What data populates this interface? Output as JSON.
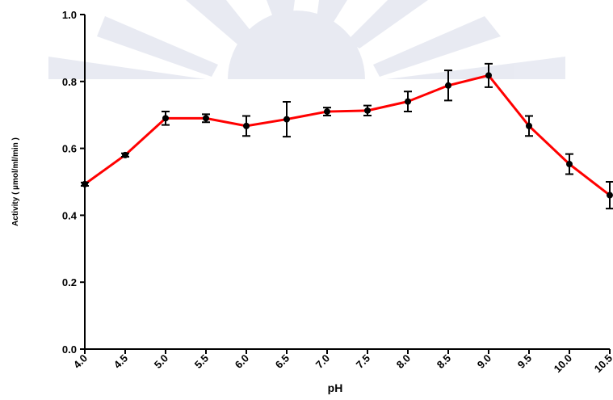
{
  "chart_data": {
    "type": "line",
    "x_label": "pH",
    "y_label": "Activity ( µmol/ml/min )",
    "x": [
      4.0,
      4.5,
      5.0,
      5.5,
      6.0,
      6.5,
      7.0,
      7.5,
      8.0,
      8.5,
      9.0,
      9.5,
      10.0,
      10.5
    ],
    "series": [
      {
        "color": "#ff0000",
        "values": [
          0.493,
          0.58,
          0.69,
          0.69,
          0.667,
          0.687,
          0.71,
          0.713,
          0.74,
          0.788,
          0.818,
          0.667,
          0.553,
          0.46
        ],
        "errors": [
          0.005,
          0.005,
          0.02,
          0.012,
          0.03,
          0.052,
          0.012,
          0.015,
          0.03,
          0.045,
          0.035,
          0.03,
          0.03,
          0.04
        ]
      }
    ],
    "xlim": [
      4,
      10.5
    ],
    "xticks": [
      {
        "value": 4,
        "label": "4.0"
      },
      {
        "value": 4.5,
        "label": "4.5"
      },
      {
        "value": 5,
        "label": "5.0"
      },
      {
        "value": 5.5,
        "label": "5.5"
      },
      {
        "value": 6,
        "label": "6.0"
      },
      {
        "value": 6.5,
        "label": "6.5"
      },
      {
        "value": 7,
        "label": "7.0"
      },
      {
        "value": 7.5,
        "label": "7.5"
      },
      {
        "value": 8,
        "label": "8.0"
      },
      {
        "value": 8.5,
        "label": "8.5"
      },
      {
        "value": 9,
        "label": "9.0"
      },
      {
        "value": 9.5,
        "label": "9.5"
      },
      {
        "value": 10,
        "label": "10.0"
      },
      {
        "value": 10.5,
        "label": "10.5"
      }
    ],
    "ylim": [
      0,
      1
    ],
    "yticks": [
      {
        "value": 0,
        "label": "0.0"
      },
      0.2,
      0.4,
      0.6,
      0.8,
      {
        "value": 1,
        "label": "1.0"
      }
    ],
    "grid": false
  }
}
